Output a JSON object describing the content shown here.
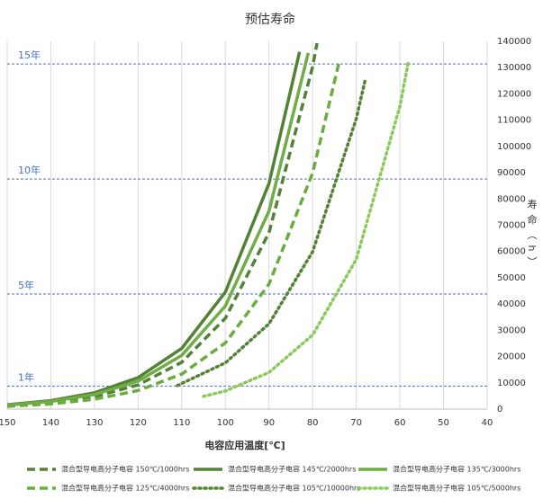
{
  "chart_data": {
    "type": "line",
    "title": "预估寿命",
    "x_label": "电容应用温度[℃]",
    "y_label": "寿命（h）",
    "xlim": [
      150,
      40
    ],
    "xticks": [
      150,
      140,
      130,
      120,
      110,
      100,
      90,
      80,
      70,
      60,
      50,
      40
    ],
    "ylim": [
      0,
      140000
    ],
    "yticks": [
      0,
      10000,
      20000,
      30000,
      40000,
      50000,
      60000,
      70000,
      80000,
      90000,
      100000,
      110000,
      120000,
      130000,
      140000
    ],
    "grid": "x",
    "y_axis_side": "right",
    "reference_lines": [
      {
        "label": "1年",
        "value": 8760
      },
      {
        "label": "5年",
        "value": 43800
      },
      {
        "label": "10年",
        "value": 87600
      },
      {
        "label": "15年",
        "value": 131400
      }
    ],
    "reference_color": "#4472c4",
    "series": [
      {
        "name": "混合型导电高分子电容 150℃/1000hrs",
        "color": "#538135",
        "dash": "dashed",
        "x": [
          150,
          140,
          130,
          120,
          110,
          100,
          90,
          80,
          79
        ],
        "values": [
          1255,
          2440,
          4730,
          9190,
          17830,
          34600,
          67200,
          130400,
          139300
        ]
      },
      {
        "name": "混合型导电高分子电容 145℃/2000hrs",
        "color": "#548235",
        "dash": "solid",
        "x": [
          150,
          140,
          130,
          120,
          110,
          100,
          90,
          83
        ],
        "values": [
          1673,
          3225,
          6220,
          11990,
          23110,
          44550,
          85900,
          136000
        ]
      },
      {
        "name": "混合型导电高分子电容 135℃/3000hrs",
        "color": "#70ad47",
        "dash": "solid",
        "x": [
          150,
          140,
          130,
          120,
          110,
          100,
          90,
          81
        ],
        "values": [
          1505,
          2890,
          5550,
          10650,
          20450,
          39270,
          75400,
          135600
        ]
      },
      {
        "name": "混合型导电高分子电容 125℃/4000hrs",
        "color": "#6aac3e",
        "dash": "dashed",
        "x": [
          150,
          140,
          130,
          120,
          110,
          100,
          90,
          80,
          74
        ],
        "values": [
          1047,
          1980,
          3740,
          7060,
          13340,
          25190,
          47590,
          89900,
          131600
        ]
      },
      {
        "name": "混合型导电高分子电容 105℃/10000hrs",
        "color": "#548235",
        "dash": "dotted",
        "x": [
          111,
          100,
          90,
          80,
          70,
          68
        ],
        "values": [
          8975,
          17600,
          32480,
          59920,
          110600,
          125000
        ]
      },
      {
        "name": "混合型导电高分子电容 105℃/5000hrs",
        "color": "#8cc95c",
        "dash": "dotted",
        "x": [
          105,
          100,
          90,
          80,
          70,
          60,
          58
        ],
        "values": [
          4850,
          6900,
          13950,
          28200,
          57030,
          115300,
          132700
        ]
      }
    ]
  }
}
